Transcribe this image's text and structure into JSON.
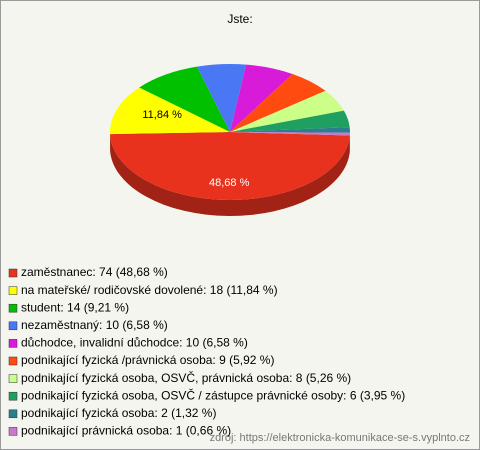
{
  "chart_data": {
    "type": "pie",
    "title": "Jste:",
    "categories": [
      "zaměstnanec: 74 (48,68 %)",
      "na mateřské/ rodičovské dovolené: 18 (11,84 %)",
      "student: 14 (9,21 %)",
      "nezaměstnaný: 10 (6,58 %)",
      "důchodce, invalidní důchodce: 10 (6,58 %)",
      "podnikající fyzická /právnická osoba: 9 (5,92 %)",
      "podnikající fyzická osoba, OSVČ, právnická osoba: 8 (5,26 %)",
      "podnikající fyzická osoba, OSVČ / zástupce právnické osoby: 6 (3,95 %)",
      "podnikající fyzická osoba: 2 (1,32 %)",
      "podnikající právnická osoba: 1 (0,66 %)"
    ],
    "values": [
      48.68,
      11.84,
      9.21,
      6.58,
      6.58,
      5.92,
      5.26,
      3.95,
      1.32,
      0.66
    ],
    "value_labels": [
      "48,68 %",
      "11,84 %",
      null,
      null,
      null,
      null,
      null,
      null,
      null,
      null
    ],
    "colors": [
      "#e8321e",
      "#ffff00",
      "#00c000",
      "#4a78f5",
      "#d81bd8",
      "#ff4a10",
      "#ccff88",
      "#20a060",
      "#2a7e8e",
      "#cc77cc"
    ],
    "source": "zdroj: https://elektronicka-komunikace-se-s.vyplnto.cz"
  }
}
